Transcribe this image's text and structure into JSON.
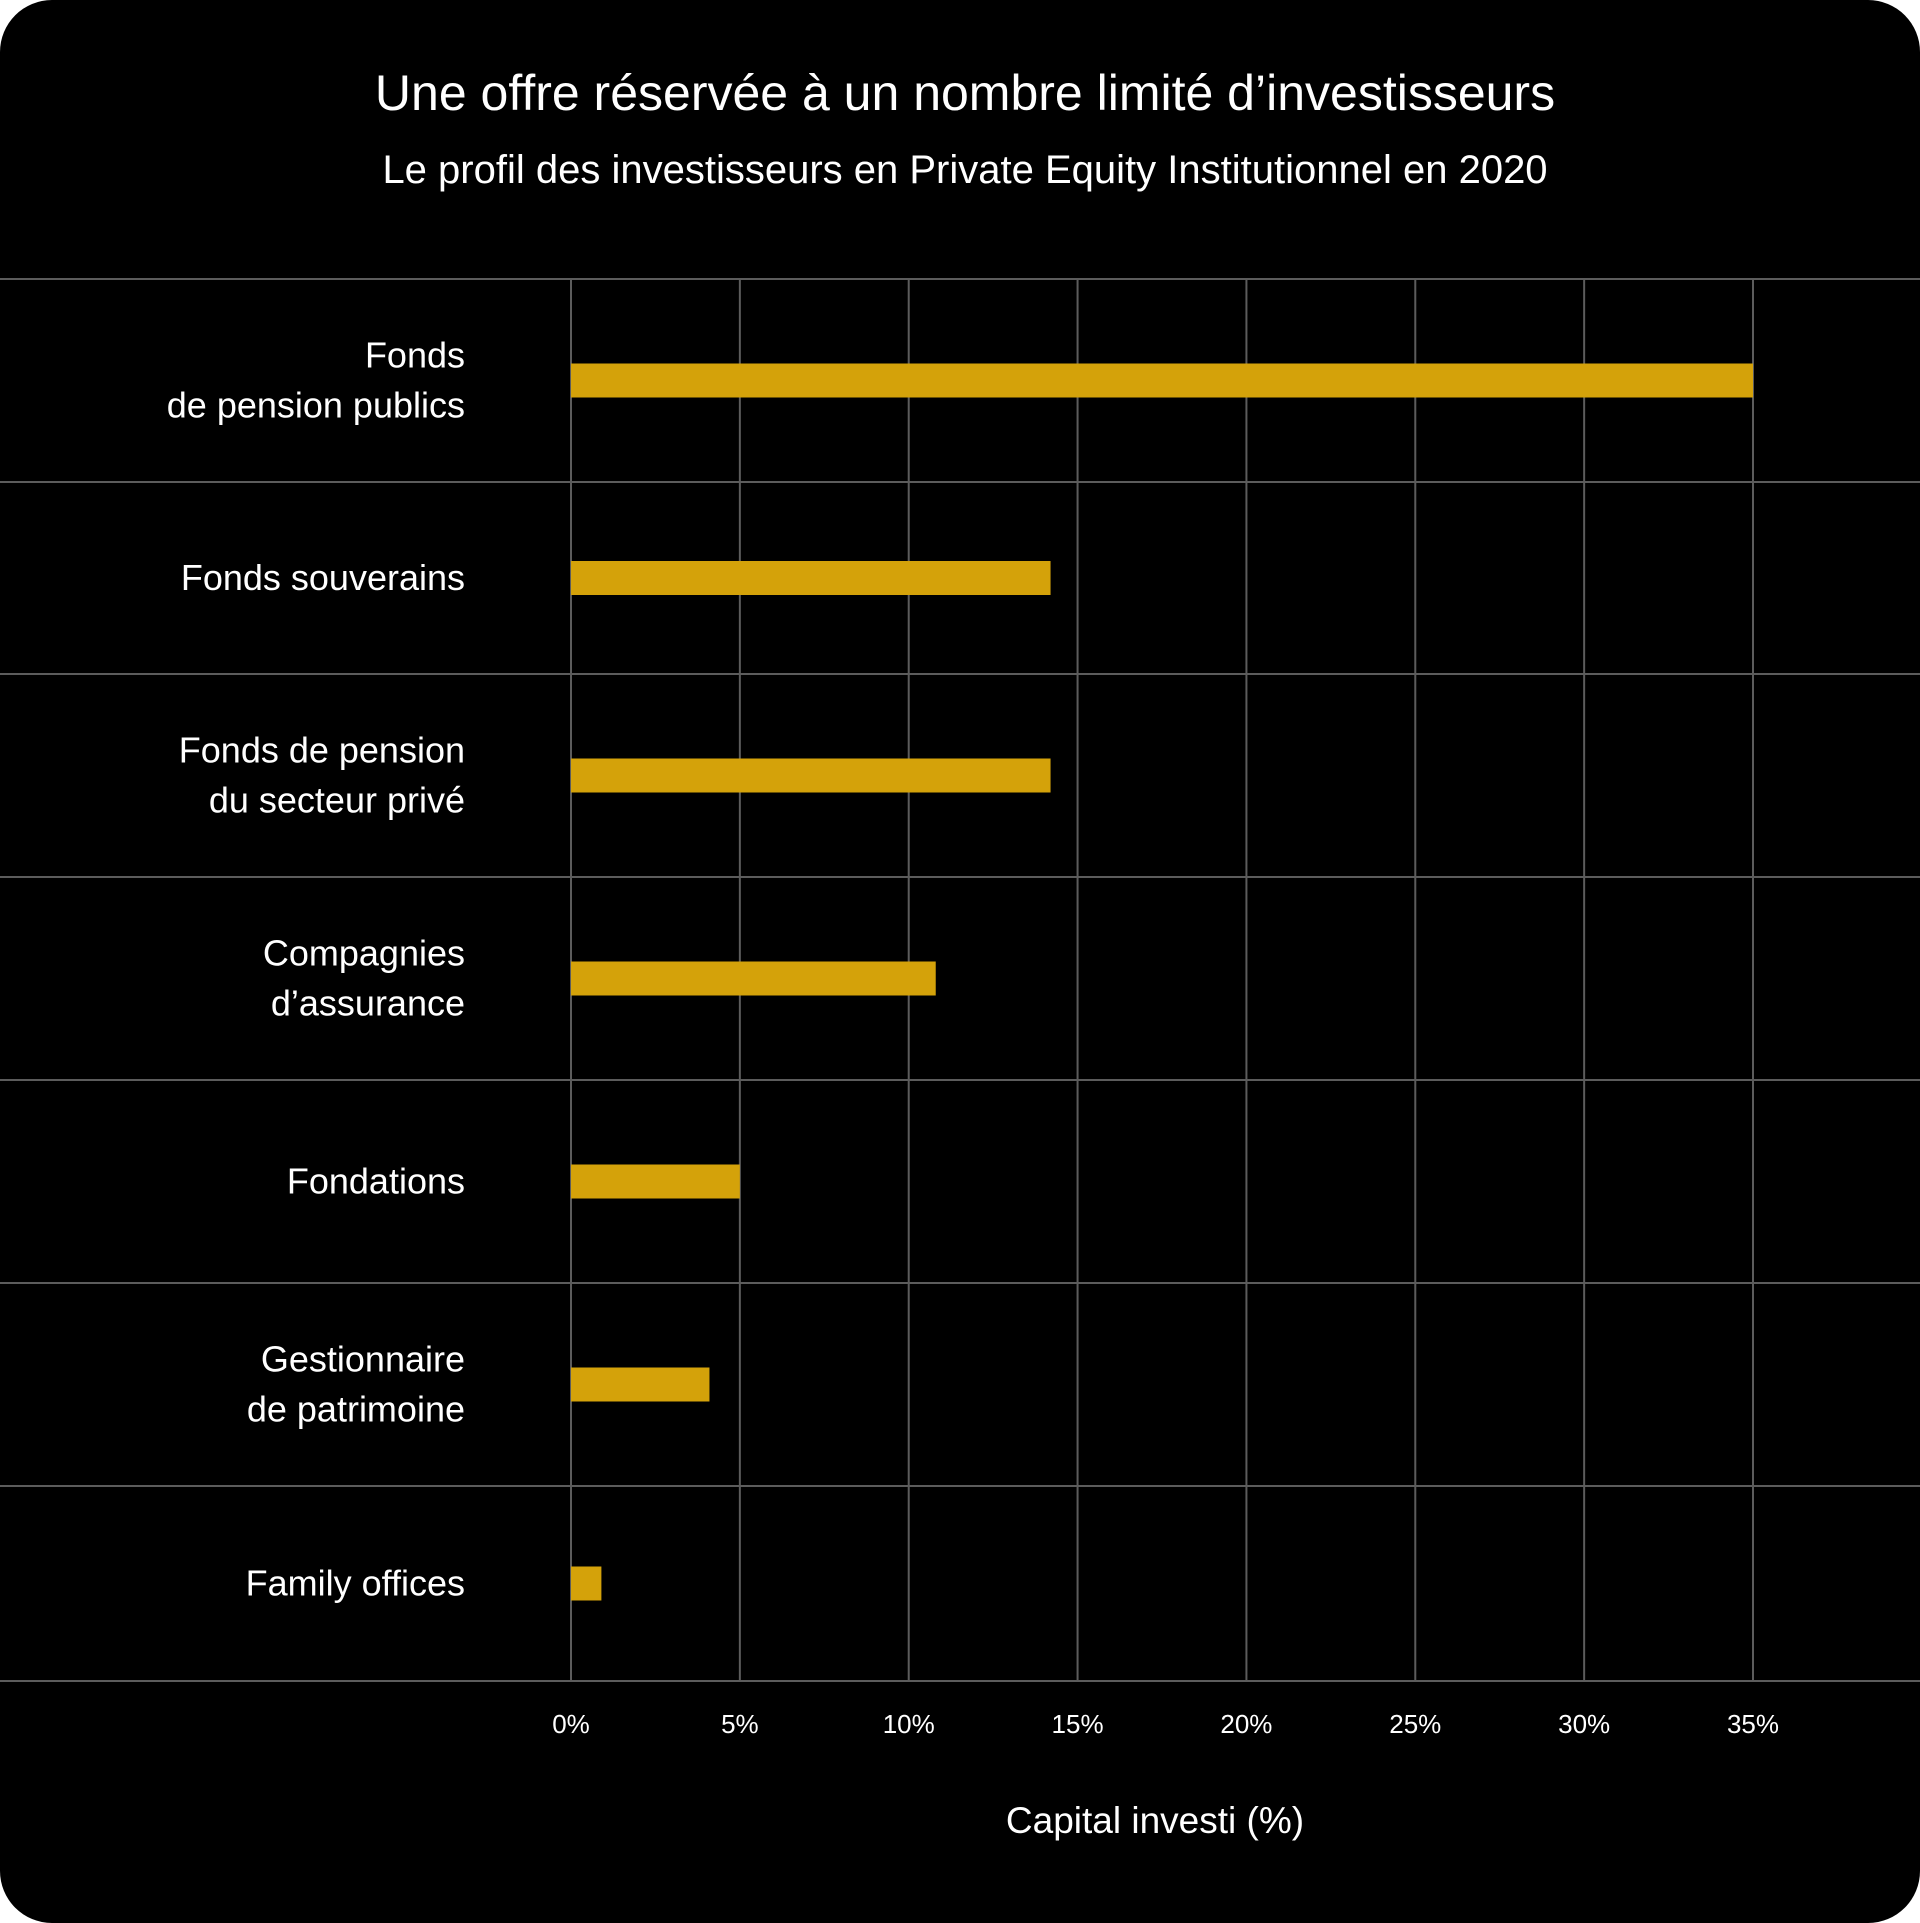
{
  "colors": {
    "background": "#000000",
    "bar": "#d4a20a",
    "grid": "#5c5c5c",
    "text": "#ffffff"
  },
  "chart_data": {
    "type": "bar",
    "orientation": "horizontal",
    "title": "Une offre réservée à un nombre limité d’investisseurs",
    "subtitle": "Le profil des investisseurs en Private Equity Institutionnel en 2020",
    "xlabel": "Capital investi (%)",
    "ylabel": "",
    "categories": [
      [
        "Fonds",
        "de pension publics"
      ],
      [
        "Fonds souverains"
      ],
      [
        "Fonds de pension",
        "du secteur privé"
      ],
      [
        "Compagnies",
        "d’assurance"
      ],
      [
        "Fondations"
      ],
      [
        "Gestionnaire",
        "de patrimoine"
      ],
      [
        "Family offices"
      ]
    ],
    "values": [
      35,
      14.2,
      14.2,
      10.8,
      5,
      4.1,
      0.9
    ],
    "xlim": [
      0,
      35
    ],
    "xticks": [
      0,
      5,
      10,
      15,
      20,
      25,
      30,
      35
    ],
    "xtick_labels": [
      "0%",
      "5%",
      "10%",
      "15%",
      "20%",
      "25%",
      "30%",
      "35%"
    ],
    "grid": true,
    "legend": "none"
  }
}
